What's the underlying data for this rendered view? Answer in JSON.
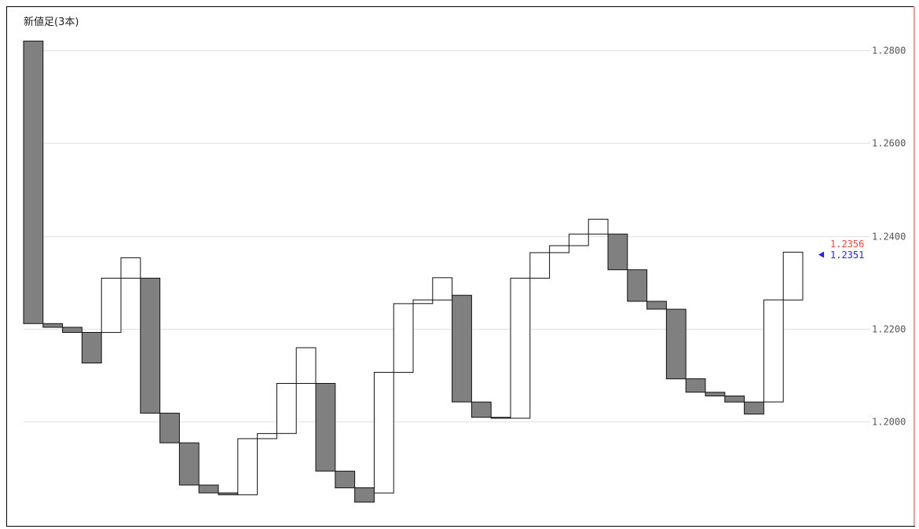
{
  "chart_data": {
    "type": "three-line-break",
    "title": "新値足(3本)",
    "y_ticks": [
      "1.2800",
      "1.2600",
      "1.2400",
      "1.2200",
      "1.2000"
    ],
    "y_tick_values": [
      1.28,
      1.26,
      1.24,
      1.22,
      1.2
    ],
    "ylim": [
      1.1775,
      1.2895
    ],
    "grid": true,
    "up_color": "#ffffff",
    "down_color": "#808080",
    "blocks": [
      {
        "dir": "down",
        "open": 1.282,
        "close": 1.2211
      },
      {
        "dir": "down",
        "open": 1.2211,
        "close": 1.2203
      },
      {
        "dir": "down",
        "open": 1.2203,
        "close": 1.2192
      },
      {
        "dir": "down",
        "open": 1.2192,
        "close": 1.2126
      },
      {
        "dir": "up",
        "open": 1.2192,
        "close": 1.2309
      },
      {
        "dir": "up",
        "open": 1.2309,
        "close": 1.2353
      },
      {
        "dir": "down",
        "open": 1.2309,
        "close": 1.2018
      },
      {
        "dir": "down",
        "open": 1.2018,
        "close": 1.1954
      },
      {
        "dir": "down",
        "open": 1.1954,
        "close": 1.1863
      },
      {
        "dir": "down",
        "open": 1.1863,
        "close": 1.1846
      },
      {
        "dir": "down",
        "open": 1.1846,
        "close": 1.1842
      },
      {
        "dir": "up",
        "open": 1.1842,
        "close": 1.1963
      },
      {
        "dir": "up",
        "open": 1.1963,
        "close": 1.1974
      },
      {
        "dir": "up",
        "open": 1.1974,
        "close": 1.2082
      },
      {
        "dir": "up",
        "open": 1.2082,
        "close": 1.2159
      },
      {
        "dir": "down",
        "open": 1.2082,
        "close": 1.1893
      },
      {
        "dir": "down",
        "open": 1.1893,
        "close": 1.1857
      },
      {
        "dir": "down",
        "open": 1.1857,
        "close": 1.1826
      },
      {
        "dir": "up",
        "open": 1.1846,
        "close": 1.2106
      },
      {
        "dir": "up",
        "open": 1.2106,
        "close": 1.2254
      },
      {
        "dir": "up",
        "open": 1.2254,
        "close": 1.2262
      },
      {
        "dir": "up",
        "open": 1.2262,
        "close": 1.231
      },
      {
        "dir": "down",
        "open": 1.2272,
        "close": 1.2042
      },
      {
        "dir": "down",
        "open": 1.2042,
        "close": 1.2009
      },
      {
        "dir": "down",
        "open": 1.2009,
        "close": 1.2007
      },
      {
        "dir": "up",
        "open": 1.2007,
        "close": 1.2309
      },
      {
        "dir": "up",
        "open": 1.2309,
        "close": 1.2364
      },
      {
        "dir": "up",
        "open": 1.2364,
        "close": 1.2379
      },
      {
        "dir": "up",
        "open": 1.2379,
        "close": 1.2404
      },
      {
        "dir": "up",
        "open": 1.2404,
        "close": 1.2436
      },
      {
        "dir": "down",
        "open": 1.2404,
        "close": 1.2327
      },
      {
        "dir": "down",
        "open": 1.2327,
        "close": 1.2259
      },
      {
        "dir": "down",
        "open": 1.2259,
        "close": 1.2242
      },
      {
        "dir": "down",
        "open": 1.2242,
        "close": 1.2092
      },
      {
        "dir": "down",
        "open": 1.2092,
        "close": 1.2063
      },
      {
        "dir": "down",
        "open": 1.2063,
        "close": 1.2055
      },
      {
        "dir": "down",
        "open": 1.2055,
        "close": 1.2042
      },
      {
        "dir": "down",
        "open": 1.2042,
        "close": 1.2016
      },
      {
        "dir": "up",
        "open": 1.2042,
        "close": 1.2262
      },
      {
        "dir": "up",
        "open": 1.2262,
        "close": 1.2365
      }
    ],
    "price_labels": [
      {
        "text": "1.2356",
        "value": 1.2356,
        "color": "#ff4040"
      },
      {
        "text": "1.2351",
        "value": 1.2351,
        "color": "#2020ff"
      }
    ],
    "marker_color": "#2020ff"
  }
}
